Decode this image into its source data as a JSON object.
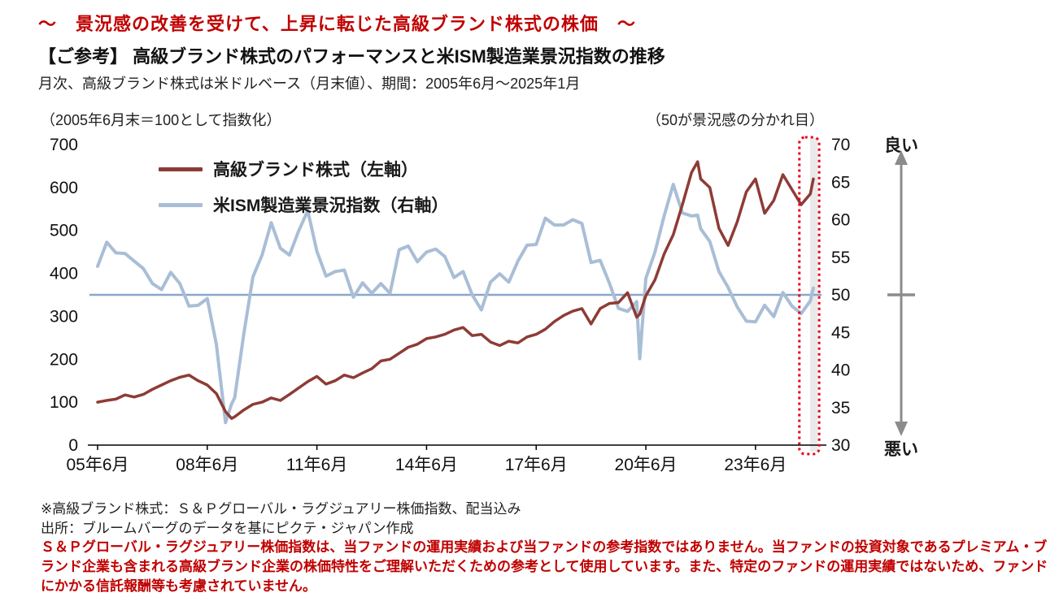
{
  "header": {
    "banner": "～　景況感の改善を受けて、上昇に転じた高級ブランド株式の株価　～",
    "title": "【ご参考】 高級ブランド株式のパフォーマンスと米ISM製造業景況指数の推移",
    "period_note": "月次、高級ブランド株式は米ドルベース（月末値）、期間：2005年6月～2025年1月"
  },
  "annotations": {
    "good_label": "良い",
    "bad_label": "悪い",
    "arrow_color": "#8c8c8c"
  },
  "footnotes": {
    "note1": "※高級ブランド株式：Ｓ＆Ｐグローバル・ラグジュアリー株価指数、配当込み",
    "source": "出所：ブルームバーグのデータを基にピクテ・ジャパン作成",
    "disclaimer": "Ｓ＆Ｐグローバル・ラグジュアリー株価指数は、当ファンドの運用実績および当ファンドの参考指数ではありません。当ファンドの投資対象であるプレミアム・ブランド企業も含まれる高級ブランド企業の株価特性をご理解いただくための参考として使用しています。また、特定のファンドの運用実績ではないため、ファンドにかかる信託報酬等も考慮されていません。",
    "disclaimer_color": "#c00000"
  },
  "chart_data": {
    "type": "line",
    "title": "高級ブランド株式のパフォーマンスと米ISM製造業景況指数の推移",
    "subtitle": "月次、高級ブランド株式は米ドルベース（月末値）、期間：2005年6月～2025年1月",
    "x_unit": "months_since_2005-06",
    "x_range": [
      0,
      235
    ],
    "x_tick_positions": [
      0,
      36,
      72,
      108,
      144,
      180,
      216
    ],
    "x_tick_labels": [
      "05年6月",
      "08年6月",
      "11年6月",
      "14年6月",
      "17年6月",
      "20年6月",
      "23年6月"
    ],
    "left_axis": {
      "label": "（2005年6月末＝100として指数化）",
      "min": 0,
      "max": 700,
      "ticks": [
        0,
        100,
        200,
        300,
        400,
        500,
        600,
        700
      ]
    },
    "right_axis": {
      "label": "（50が景況感の分かれ目）",
      "min": 30,
      "max": 70,
      "ticks": [
        30,
        35,
        40,
        45,
        50,
        55,
        60,
        65,
        70
      ]
    },
    "reference_line_right": 50,
    "reference_line_color": "#8aa6c9",
    "grid": false,
    "legend_position": "top-left-inside",
    "x": [
      0,
      3,
      6,
      9,
      12,
      15,
      18,
      21,
      24,
      27,
      30,
      33,
      36,
      39,
      42,
      44,
      45,
      48,
      51,
      54,
      57,
      60,
      63,
      66,
      69,
      72,
      75,
      78,
      81,
      84,
      87,
      90,
      93,
      96,
      99,
      102,
      105,
      108,
      111,
      114,
      117,
      120,
      123,
      126,
      129,
      132,
      135,
      138,
      141,
      144,
      147,
      150,
      153,
      156,
      159,
      162,
      165,
      168,
      171,
      174,
      177,
      178,
      180,
      183,
      186,
      189,
      192,
      195,
      197,
      198,
      201,
      204,
      207,
      210,
      213,
      216,
      219,
      222,
      225,
      228,
      231,
      234,
      235
    ],
    "series": [
      {
        "name": "高級ブランド株式（左軸）",
        "axis": "left",
        "color": "#8e3b36",
        "width": 3.5,
        "values": [
          100,
          104,
          107,
          117,
          112,
          118,
          130,
          140,
          150,
          158,
          163,
          150,
          140,
          120,
          78,
          62,
          66,
          82,
          95,
          100,
          110,
          104,
          118,
          133,
          148,
          160,
          142,
          150,
          163,
          157,
          168,
          178,
          196,
          200,
          214,
          228,
          235,
          248,
          252,
          258,
          268,
          274,
          255,
          258,
          240,
          232,
          242,
          238,
          252,
          258,
          270,
          288,
          302,
          312,
          318,
          282,
          318,
          330,
          332,
          355,
          298,
          305,
          348,
          385,
          445,
          490,
          560,
          635,
          660,
          620,
          600,
          505,
          465,
          520,
          590,
          620,
          540,
          570,
          630,
          595,
          560,
          585,
          620
        ]
      },
      {
        "name": "米ISM製造業景況指数（右軸）",
        "axis": "right",
        "color": "#a9bed6",
        "width": 4,
        "values": [
          53.8,
          57.0,
          55.6,
          55.5,
          54.5,
          53.5,
          51.5,
          50.7,
          53.0,
          51.5,
          48.5,
          48.6,
          49.5,
          43.4,
          33.0,
          35.5,
          36.3,
          44.8,
          52.4,
          55.3,
          59.6,
          56.2,
          55.3,
          58.5,
          61.2,
          55.8,
          52.5,
          53.1,
          53.3,
          49.7,
          51.6,
          50.2,
          51.5,
          50.2,
          56.0,
          56.5,
          54.4,
          55.7,
          56.1,
          55.1,
          52.3,
          53.1,
          50.0,
          48.0,
          51.7,
          52.8,
          51.7,
          54.5,
          56.6,
          56.7,
          60.2,
          59.3,
          59.3,
          60.0,
          59.5,
          54.3,
          54.6,
          51.6,
          48.2,
          47.8,
          49.1,
          41.5,
          52.2,
          55.7,
          60.5,
          64.7,
          60.9,
          60.5,
          60.6,
          58.8,
          57.1,
          53.1,
          51.0,
          48.4,
          46.5,
          46.4,
          48.6,
          47.1,
          50.3,
          48.5,
          47.5,
          49.2,
          50.9
        ]
      }
    ],
    "highlight_box": {
      "x_start": 230.4,
      "x_end": 236.9,
      "color": "#e8001c",
      "band_start": 233.9,
      "band_end": 236.4,
      "band_color": "#eaeaea"
    }
  }
}
